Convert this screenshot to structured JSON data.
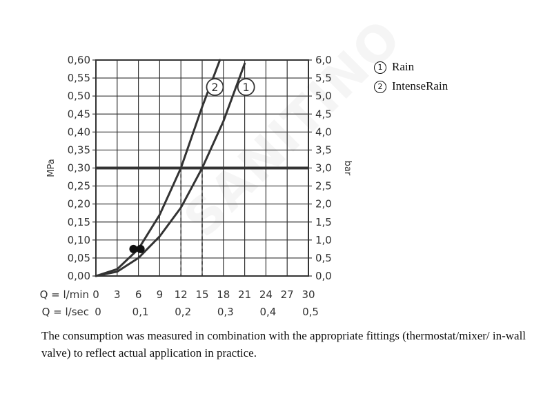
{
  "chart_data": {
    "type": "line",
    "left_axis": {
      "label": "MPa",
      "range": [
        0,
        0.6
      ],
      "ticks": [
        "0,00",
        "0,05",
        "0,10",
        "0,15",
        "0,20",
        "0,25",
        "0,30",
        "0,35",
        "0,40",
        "0,45",
        "0,50",
        "0,55",
        "0,60"
      ]
    },
    "right_axis": {
      "label": "bar",
      "range": [
        0,
        6
      ],
      "ticks": [
        "0,0",
        "0,5",
        "1,0",
        "1,5",
        "2,0",
        "2,5",
        "3,0",
        "3,5",
        "4,0",
        "4,5",
        "5,0",
        "5,5",
        "6,0"
      ]
    },
    "x_axis_lmin": {
      "label": "Q = l/min",
      "range": [
        0,
        30
      ],
      "ticks": [
        "0",
        "3",
        "6",
        "9",
        "12",
        "15",
        "18",
        "21",
        "24",
        "27",
        "30"
      ]
    },
    "x_axis_lsec": {
      "label": "Q = l/sec",
      "ticks": [
        "0",
        "0,1",
        "0,2",
        "0,3",
        "0,4",
        "0,5"
      ]
    },
    "series": [
      {
        "name": "Rain",
        "marker": "1",
        "x": [
          0,
          3,
          6,
          9,
          12,
          15,
          18,
          21
        ],
        "y": [
          0,
          0.012,
          0.05,
          0.11,
          0.19,
          0.3,
          0.43,
          0.59
        ]
      },
      {
        "name": "IntenseRain",
        "marker": "2",
        "x": [
          0,
          3,
          6,
          9,
          12,
          15,
          17.5
        ],
        "y": [
          0,
          0.019,
          0.075,
          0.17,
          0.3,
          0.47,
          0.6
        ]
      }
    ],
    "reference_line": {
      "y": 0.3
    },
    "dashed_markers": [
      12,
      15
    ],
    "points": [
      {
        "x": 5.3,
        "y": 0.075
      },
      {
        "x": 6.3,
        "y": 0.075
      }
    ],
    "grid": true
  },
  "legend": [
    {
      "symbol": "①",
      "label": "Rain"
    },
    {
      "symbol": "②",
      "label": "IntenseRain"
    }
  ],
  "caption": "The consumption was measured in combination with the appropriate fittings (thermostat/mixer/ in-wall valve) to reflect actual application in practice.",
  "watermark": "SANITINO",
  "colors": {
    "line": "#333333",
    "reference": "#333333",
    "grid": "#333333"
  }
}
